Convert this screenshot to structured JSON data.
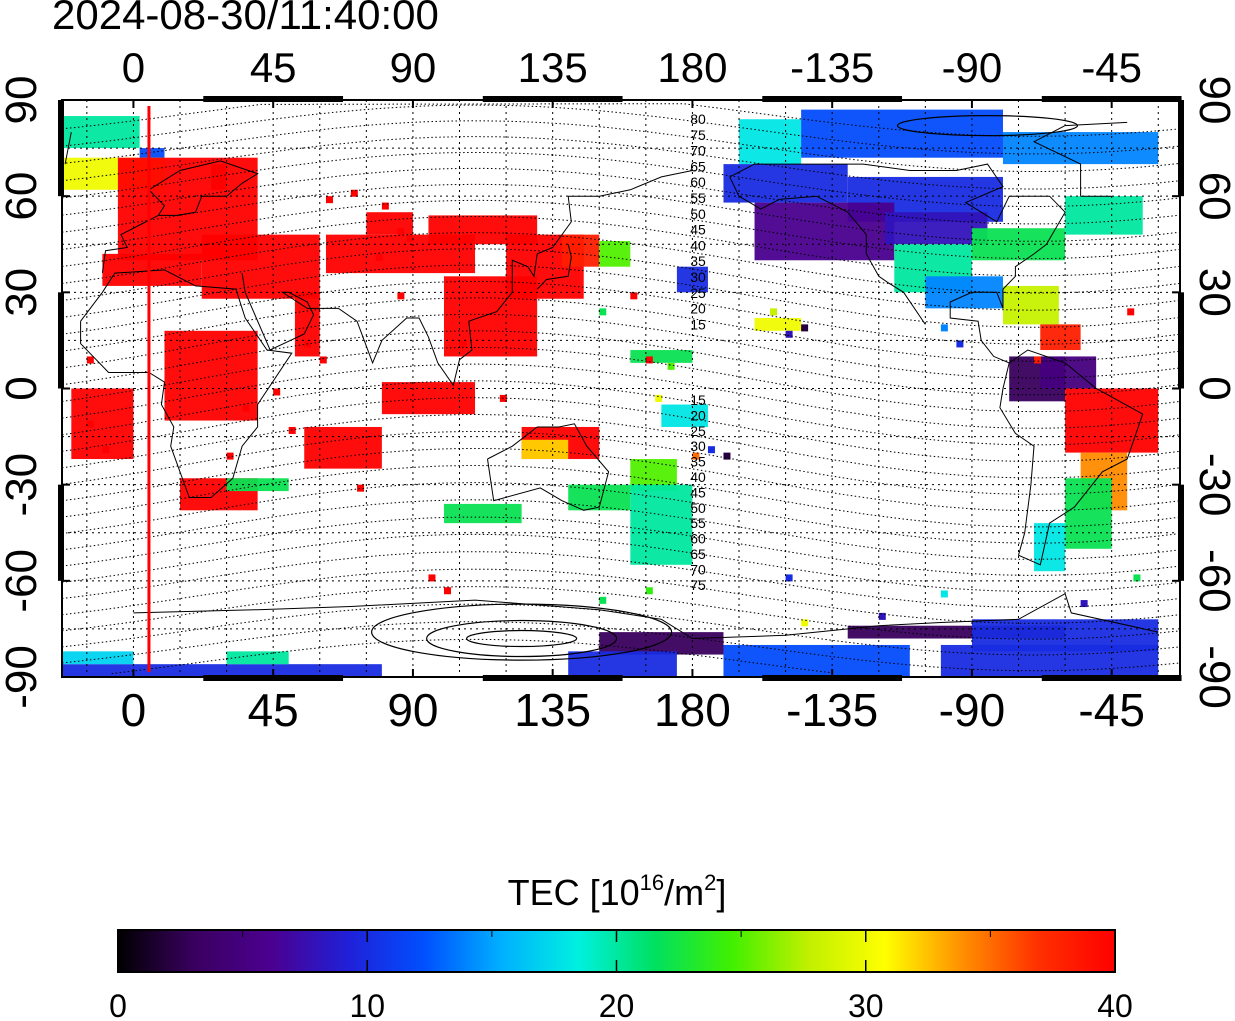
{
  "title": "2024-08-30/11:40:00",
  "map": {
    "projection": "equirectangular",
    "lon_center": 180,
    "x_tick_labels": [
      "0",
      "45",
      "90",
      "135",
      "180",
      "-135",
      "-90",
      "-45"
    ],
    "y_tick_labels": [
      "90",
      "60",
      "30",
      "0",
      "-30",
      "-60",
      "-90"
    ],
    "contour_labels_north": [
      "80",
      "75",
      "70",
      "65",
      "60",
      "55",
      "50",
      "45",
      "40",
      "35",
      "30",
      "25",
      "20",
      "15"
    ],
    "contour_labels_south": [
      "15",
      "20",
      "25",
      "30",
      "35",
      "40",
      "45",
      "50",
      "55",
      "60",
      "65",
      "70",
      "75"
    ],
    "terminator_line_color": "#ff0000",
    "terminator_lon": 5
  },
  "colorbar": {
    "label_main": "TEC  [10",
    "label_exp": "16",
    "label_mid": "/m",
    "label_exp2": "2",
    "label_end": "]",
    "tick_labels": [
      "0",
      "10",
      "20",
      "30",
      "40"
    ],
    "min": 0,
    "max": 40,
    "colors": [
      "#000000",
      "#3a0060",
      "#4b0090",
      "#2020d8",
      "#0050ff",
      "#00b0ff",
      "#00f0e0",
      "#00e060",
      "#40f000",
      "#c0f000",
      "#ffff00",
      "#ff9000",
      "#ff3000",
      "#ff0000"
    ]
  }
}
